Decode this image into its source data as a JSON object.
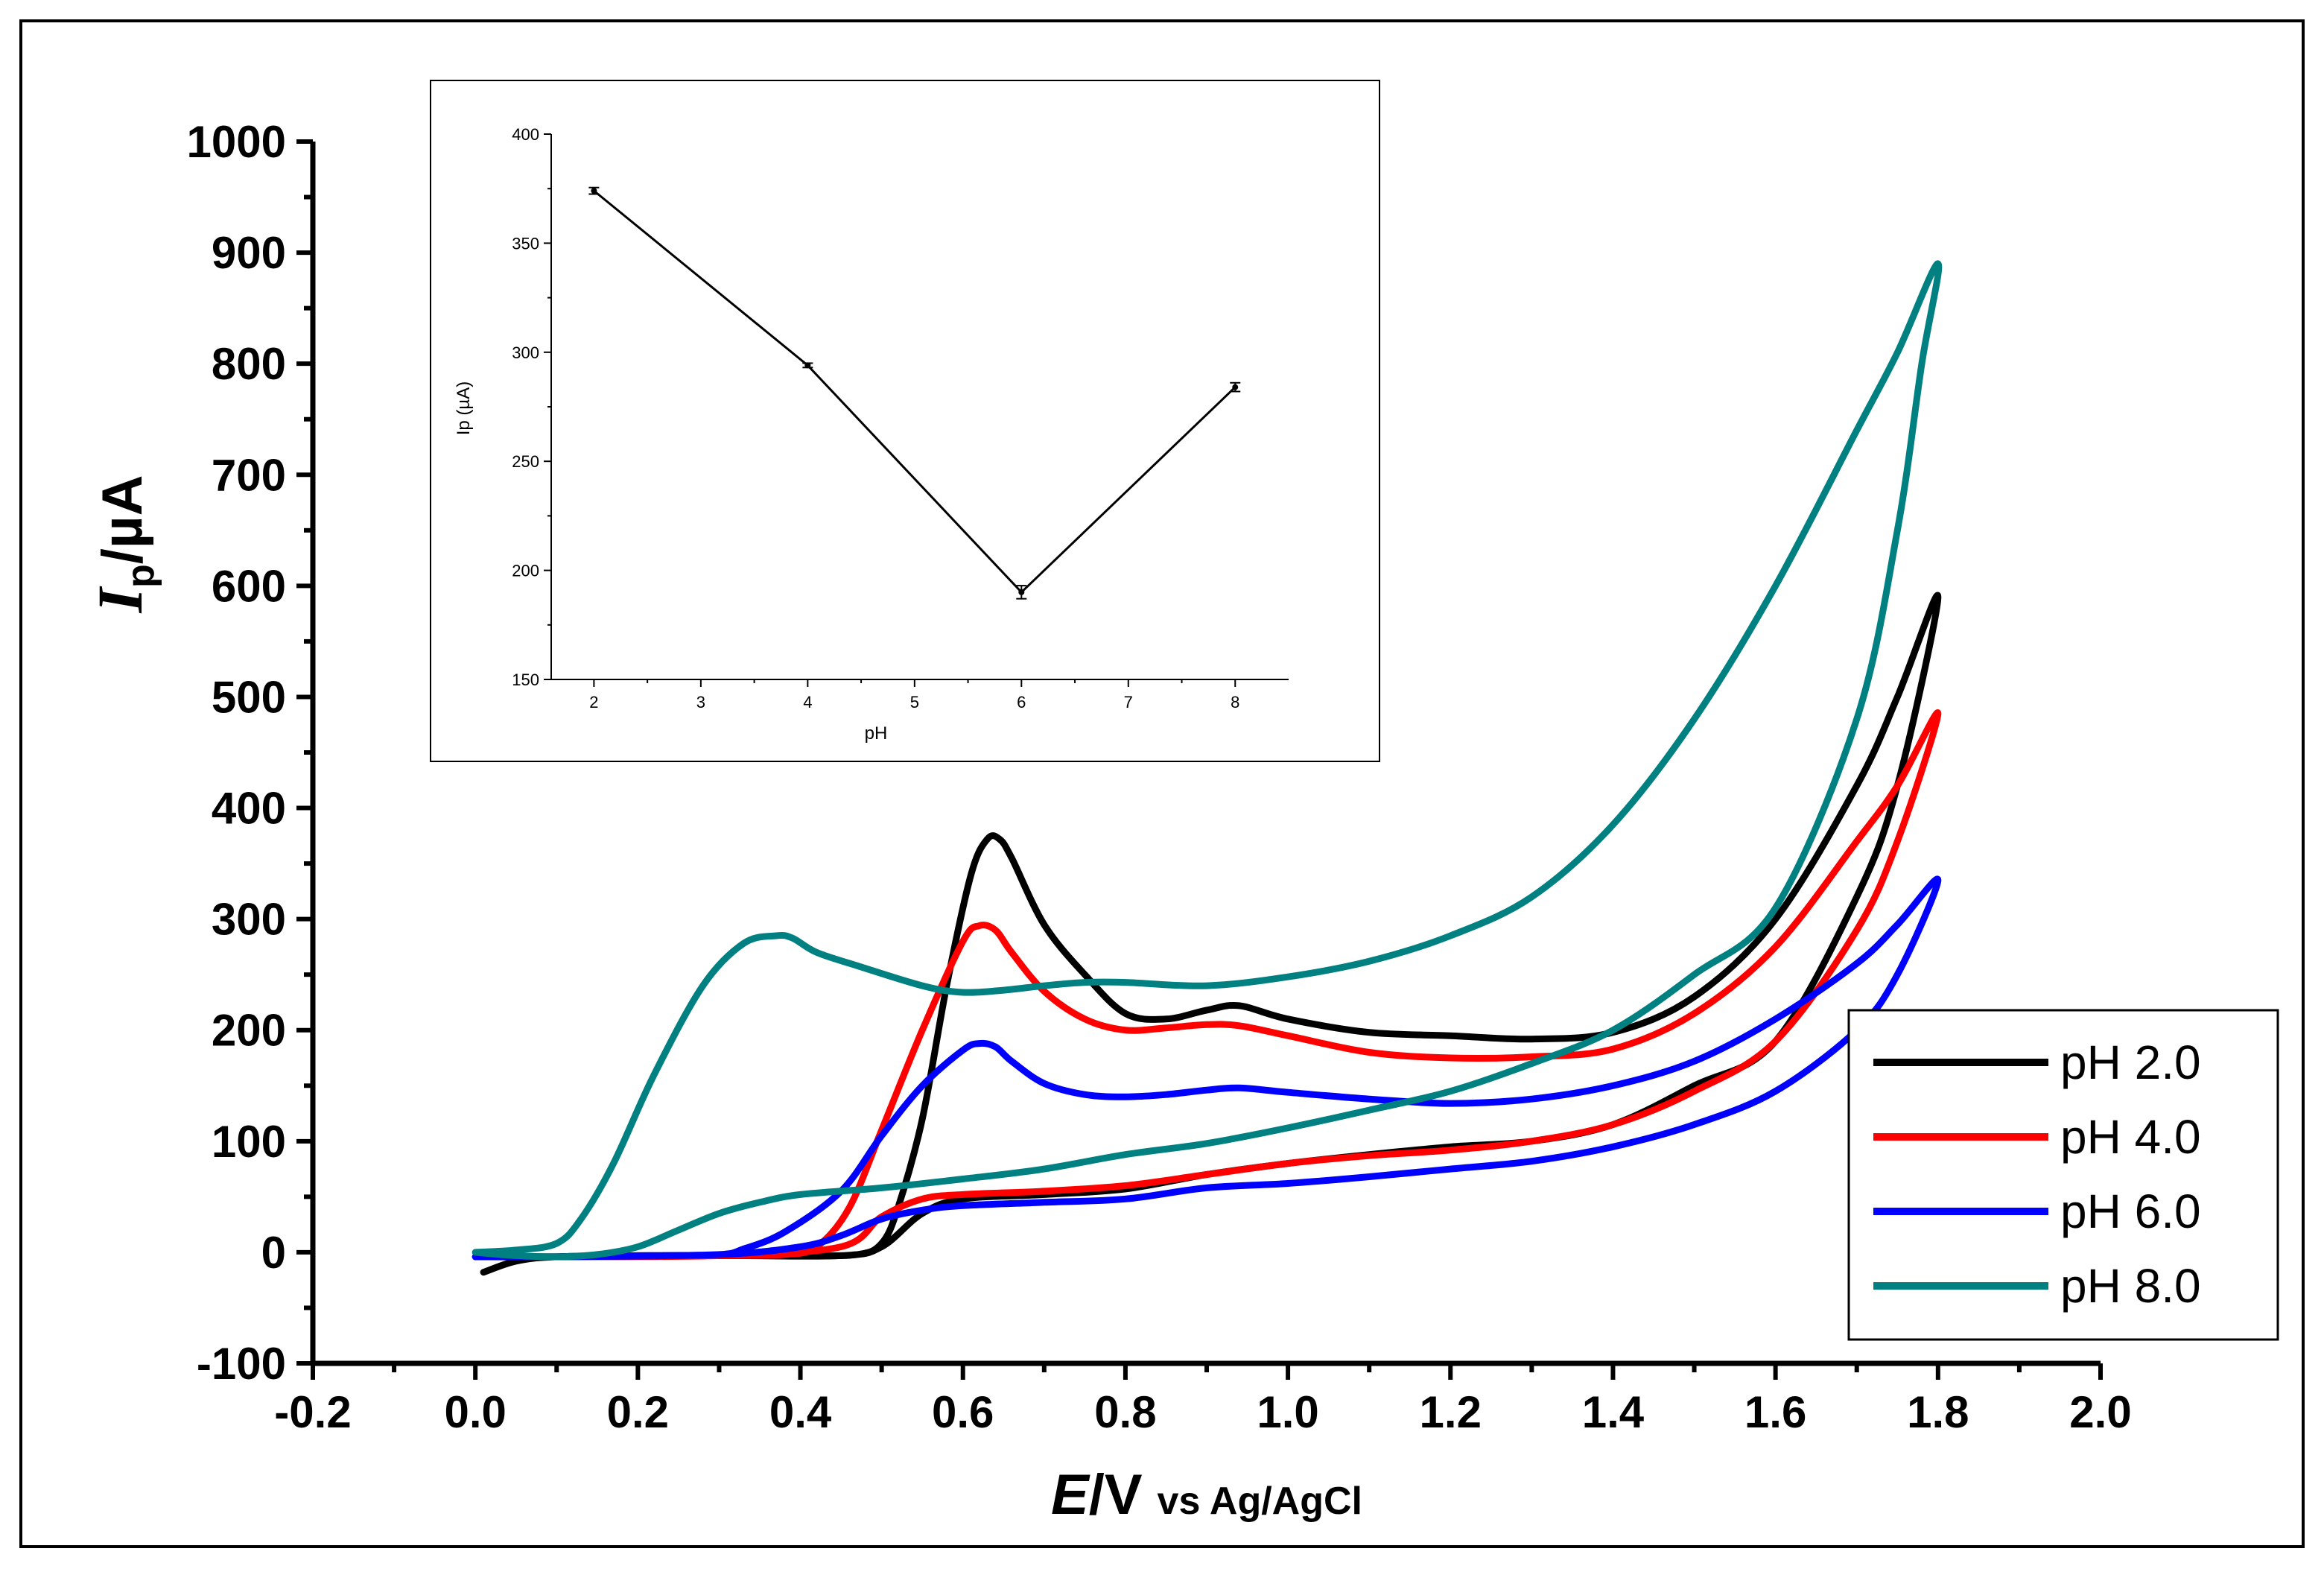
{
  "chart_data": [
    {
      "id": "main",
      "type": "line",
      "title": "",
      "xlabel": {
        "italic": "E",
        "main": "/V",
        "sub": "vs Ag/AgCl"
      },
      "ylabel": {
        "italic": "I",
        "sub": "p",
        "main": "/µA"
      },
      "xlim": [
        -0.2,
        2.0
      ],
      "ylim": [
        -100,
        1000
      ],
      "xticks": [
        -0.2,
        0.0,
        0.2,
        0.4,
        0.6,
        0.8,
        1.0,
        1.2,
        1.4,
        1.6,
        1.8,
        2.0
      ],
      "xtick_labels": [
        "-0.2",
        "0.0",
        "0.2",
        "0.4",
        "0.6",
        "0.8",
        "1.0",
        "1.2",
        "1.4",
        "1.6",
        "1.8",
        "2.0"
      ],
      "yticks": [
        -100,
        0,
        100,
        200,
        300,
        400,
        500,
        600,
        700,
        800,
        900,
        1000
      ],
      "ytick_labels": [
        "-100",
        "0",
        "100",
        "200",
        "300",
        "400",
        "500",
        "600",
        "700",
        "800",
        "900",
        "1000"
      ],
      "legend_position": "bottom-right",
      "grid": false,
      "series": [
        {
          "name": "pH 2.0",
          "color": "#000000",
          "x": [
            0.01,
            0.05,
            0.1,
            0.2,
            0.3,
            0.4,
            0.47,
            0.5,
            0.52,
            0.55,
            0.58,
            0.61,
            0.63,
            0.645,
            0.66,
            0.7,
            0.75,
            0.8,
            0.85,
            0.9,
            0.94,
            1.0,
            1.1,
            1.2,
            1.3,
            1.4,
            1.5,
            1.6,
            1.7,
            1.75,
            1.8,
            1.75,
            1.7,
            1.6,
            1.5,
            1.4,
            1.3,
            1.2,
            1.1,
            1.0,
            0.9,
            0.8,
            0.7,
            0.6,
            0.55,
            0.5,
            0.45,
            0.3,
            0.1,
            0.0
          ],
          "y": [
            -18,
            -8,
            -4,
            -3,
            -3,
            -3,
            -2,
            8,
            40,
            120,
            240,
            340,
            372,
            372,
            355,
            295,
            250,
            215,
            210,
            218,
            222,
            210,
            198,
            195,
            192,
            198,
            230,
            300,
            420,
            500,
            590,
            420,
            320,
            190,
            150,
            115,
            100,
            95,
            88,
            80,
            70,
            57,
            52,
            48,
            35,
            5,
            -3,
            -3,
            -4,
            -4
          ]
        },
        {
          "name": "pH 4.0",
          "color": "#ff0000",
          "x": [
            0.0,
            0.1,
            0.2,
            0.3,
            0.38,
            0.42,
            0.46,
            0.5,
            0.55,
            0.6,
            0.62,
            0.64,
            0.66,
            0.7,
            0.75,
            0.8,
            0.85,
            0.9,
            0.94,
            1.0,
            1.1,
            1.2,
            1.3,
            1.4,
            1.5,
            1.6,
            1.7,
            1.75,
            1.8,
            1.75,
            1.7,
            1.6,
            1.5,
            1.4,
            1.3,
            1.2,
            1.1,
            1.0,
            0.9,
            0.8,
            0.7,
            0.6,
            0.55,
            0.5,
            0.45,
            0.3,
            0.1,
            0.0
          ],
          "y": [
            -4,
            -4,
            -4,
            -3,
            -2,
            5,
            40,
            110,
            200,
            280,
            294,
            290,
            270,
            235,
            210,
            200,
            202,
            205,
            204,
            195,
            180,
            175,
            176,
            183,
            215,
            275,
            370,
            420,
            485,
            370,
            290,
            190,
            145,
            115,
            100,
            92,
            87,
            80,
            70,
            60,
            55,
            52,
            48,
            32,
            5,
            -3,
            -4,
            -4
          ]
        },
        {
          "name": "pH 6.0",
          "color": "#0000ff",
          "x": [
            0.0,
            0.1,
            0.2,
            0.3,
            0.33,
            0.38,
            0.45,
            0.5,
            0.55,
            0.6,
            0.62,
            0.64,
            0.66,
            0.7,
            0.75,
            0.8,
            0.85,
            0.9,
            0.94,
            1.0,
            1.1,
            1.2,
            1.3,
            1.4,
            1.5,
            1.6,
            1.7,
            1.75,
            1.8,
            1.75,
            1.7,
            1.6,
            1.5,
            1.4,
            1.3,
            1.2,
            1.1,
            1.0,
            0.9,
            0.8,
            0.7,
            0.6,
            0.55,
            0.5,
            0.45,
            0.4,
            0.3,
            0.1,
            0.0
          ],
          "y": [
            -4,
            -4,
            -3,
            -2,
            3,
            18,
            55,
            105,
            150,
            182,
            188,
            185,
            172,
            152,
            142,
            140,
            142,
            146,
            148,
            144,
            138,
            134,
            138,
            150,
            172,
            210,
            260,
            295,
            335,
            250,
            200,
            145,
            115,
            95,
            82,
            75,
            68,
            62,
            58,
            48,
            45,
            42,
            38,
            30,
            15,
            5,
            -2,
            -4,
            -4
          ]
        },
        {
          "name": "pH 8.0",
          "color": "#008080",
          "x": [
            0.0,
            0.05,
            0.1,
            0.13,
            0.17,
            0.22,
            0.28,
            0.33,
            0.37,
            0.39,
            0.42,
            0.47,
            0.55,
            0.6,
            0.65,
            0.7,
            0.75,
            0.8,
            0.9,
            1.0,
            1.1,
            1.2,
            1.3,
            1.4,
            1.5,
            1.6,
            1.7,
            1.75,
            1.8,
            1.78,
            1.75,
            1.7,
            1.6,
            1.5,
            1.4,
            1.3,
            1.2,
            1.1,
            1.0,
            0.9,
            0.8,
            0.7,
            0.6,
            0.5,
            0.4,
            0.35,
            0.3,
            0.25,
            0.2,
            0.15,
            0.1,
            0.05,
            0.0
          ],
          "y": [
            0,
            2,
            8,
            30,
            80,
            160,
            240,
            278,
            285,
            283,
            270,
            258,
            240,
            234,
            236,
            240,
            243,
            243,
            240,
            248,
            262,
            285,
            320,
            385,
            480,
            600,
            740,
            810,
            890,
            800,
            650,
            480,
            310,
            250,
            200,
            170,
            145,
            128,
            112,
            98,
            88,
            75,
            66,
            58,
            52,
            45,
            35,
            20,
            5,
            -2,
            -4,
            -3,
            0
          ]
        }
      ]
    },
    {
      "id": "inset",
      "type": "line",
      "title": "",
      "xlabel": "pH",
      "ylabel": "Ip (µA)",
      "xlim": [
        1.6,
        8.5
      ],
      "ylim": [
        150,
        400
      ],
      "xticks": [
        2,
        3,
        4,
        5,
        6,
        7,
        8
      ],
      "xtick_labels": [
        "2",
        "3",
        "4",
        "5",
        "6",
        "7",
        "8"
      ],
      "yticks": [
        150,
        200,
        250,
        300,
        350,
        400
      ],
      "ytick_labels": [
        "150",
        "200",
        "250",
        "300",
        "350",
        "400"
      ],
      "grid": false,
      "series": [
        {
          "name": "Ip vs pH",
          "color": "#000000",
          "x": [
            2,
            4,
            6,
            8
          ],
          "y": [
            374,
            294,
            190,
            284
          ],
          "error": [
            1.5,
            1,
            3,
            2
          ]
        }
      ]
    }
  ]
}
